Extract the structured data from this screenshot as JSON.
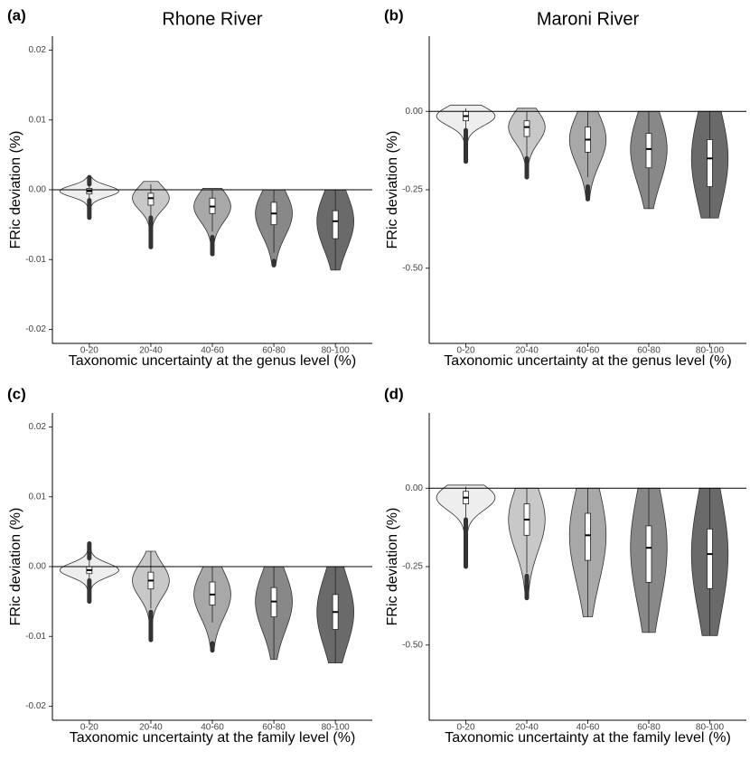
{
  "chart_data": [
    {
      "type": "violin",
      "panel_label": "(a)",
      "title": "Rhone River",
      "ylabel": "FRic deviation (%)",
      "xlabel": "Taxonomic uncertainty at the genus level (%)",
      "categories": [
        "0-20",
        "20-40",
        "40-60",
        "60-80",
        "80-100"
      ],
      "ylim": [
        -0.022,
        0.022
      ],
      "yticks": [
        -0.02,
        -0.01,
        {
          "value": 0,
          "label": "0.00"
        },
        0.01,
        0.02
      ],
      "hline": 0,
      "violins": [
        {
          "color": "#eeeeee",
          "range": [
            -0.004,
            0.0018
          ],
          "box": [
            -0.0015,
            -0.0006,
            -0.0002,
            0.0002,
            0.0008
          ],
          "outliers": [
            [
              -0.004,
              -0.0015
            ],
            [
              0.0008,
              0.0018
            ]
          ]
        },
        {
          "color": "#c8c8c8",
          "range": [
            -0.0082,
            0.0012
          ],
          "box": [
            -0.004,
            -0.0022,
            -0.0012,
            -0.0005,
            0.0008
          ],
          "outliers": [
            [
              -0.0082,
              -0.004
            ]
          ]
        },
        {
          "color": "#a8a8a8",
          "range": [
            -0.0092,
            0.0002
          ],
          "box": [
            -0.006,
            -0.0034,
            -0.0024,
            -0.0012,
            0
          ],
          "outliers": [
            [
              -0.0092,
              -0.0068
            ]
          ]
        },
        {
          "color": "#888888",
          "range": [
            -0.0108,
            0
          ],
          "box": [
            -0.009,
            -0.005,
            -0.0034,
            -0.0018,
            0
          ],
          "outliers": [
            [
              -0.0108,
              -0.0102
            ]
          ]
        },
        {
          "color": "#6a6a6a",
          "range": [
            -0.0115,
            0
          ],
          "box": [
            -0.0115,
            -0.007,
            -0.0045,
            -0.003,
            0
          ],
          "outliers": []
        }
      ]
    },
    {
      "type": "violin",
      "panel_label": "(b)",
      "title": "Maroni River",
      "ylabel": "FRic deviation (%)",
      "xlabel": "Taxonomic uncertainty at the genus level (%)",
      "categories": [
        "0-20",
        "20-40",
        "40-60",
        "60-80",
        "80-100"
      ],
      "ylim": [
        -0.74,
        0.24
      ],
      "yticks": [
        {
          "value": -0.5,
          "label": "-0.50"
        },
        -0.25,
        {
          "value": 0,
          "label": "0.00"
        }
      ],
      "hline": 0,
      "violins": [
        {
          "color": "#eeeeee",
          "range": [
            -0.16,
            0.02
          ],
          "box": [
            -0.06,
            -0.03,
            -0.015,
            0,
            0.01
          ],
          "outliers": [
            [
              -0.16,
              -0.06
            ]
          ]
        },
        {
          "color": "#c8c8c8",
          "range": [
            -0.21,
            0.01
          ],
          "box": [
            -0.15,
            -0.08,
            -0.05,
            -0.03,
            0
          ],
          "outliers": [
            [
              -0.21,
              -0.15
            ]
          ]
        },
        {
          "color": "#a8a8a8",
          "range": [
            -0.28,
            0
          ],
          "box": [
            -0.21,
            -0.13,
            -0.09,
            -0.05,
            0
          ],
          "outliers": [
            [
              -0.28,
              -0.24
            ]
          ]
        },
        {
          "color": "#888888",
          "range": [
            -0.31,
            0
          ],
          "box": [
            -0.31,
            -0.18,
            -0.12,
            -0.07,
            0
          ],
          "outliers": []
        },
        {
          "color": "#6a6a6a",
          "range": [
            -0.34,
            0
          ],
          "box": [
            -0.34,
            -0.24,
            -0.15,
            -0.09,
            0
          ],
          "outliers": []
        }
      ]
    },
    {
      "type": "violin",
      "panel_label": "(c)",
      "ylabel": "FRic deviation (%)",
      "xlabel": "Taxonomic uncertainty at the family level (%)",
      "categories": [
        "0-20",
        "20-40",
        "40-60",
        "60-80",
        "80-100"
      ],
      "ylim": [
        -0.022,
        0.022
      ],
      "yticks": [
        -0.02,
        -0.01,
        {
          "value": 0,
          "label": "0.00"
        },
        0.01,
        0.02
      ],
      "hline": 0,
      "violins": [
        {
          "color": "#eeeeee",
          "range": [
            -0.005,
            0.0033
          ],
          "box": [
            -0.002,
            -0.001,
            -0.0005,
            0,
            0.0012
          ],
          "outliers": [
            [
              -0.005,
              -0.002
            ],
            [
              0.0012,
              0.0033
            ]
          ]
        },
        {
          "color": "#c8c8c8",
          "range": [
            -0.0105,
            0.0022
          ],
          "box": [
            -0.006,
            -0.0032,
            -0.002,
            -0.0008,
            0.0022
          ],
          "outliers": [
            [
              -0.0105,
              -0.0065
            ]
          ]
        },
        {
          "color": "#a8a8a8",
          "range": [
            -0.012,
            0
          ],
          "box": [
            -0.008,
            -0.0055,
            -0.004,
            -0.0022,
            0
          ],
          "outliers": [
            [
              -0.012,
              -0.011
            ]
          ]
        },
        {
          "color": "#888888",
          "range": [
            -0.0133,
            0
          ],
          "box": [
            -0.0133,
            -0.0072,
            -0.005,
            -0.003,
            0
          ],
          "outliers": []
        },
        {
          "color": "#6a6a6a",
          "range": [
            -0.0138,
            0
          ],
          "box": [
            -0.0138,
            -0.009,
            -0.0065,
            -0.004,
            0
          ],
          "outliers": []
        }
      ]
    },
    {
      "type": "violin",
      "panel_label": "(d)",
      "ylabel": "FRic deviation (%)",
      "xlabel": "Taxonomic uncertainty at the family level (%)",
      "categories": [
        "0-20",
        "20-40",
        "40-60",
        "60-80",
        "80-100"
      ],
      "ylim": [
        -0.74,
        0.24
      ],
      "yticks": [
        {
          "value": -0.5,
          "label": "-0.50"
        },
        -0.25,
        {
          "value": 0,
          "label": "0.00"
        }
      ],
      "hline": 0,
      "violins": [
        {
          "color": "#eeeeee",
          "range": [
            -0.25,
            0.01
          ],
          "box": [
            -0.1,
            -0.05,
            -0.03,
            -0.01,
            0.005
          ],
          "outliers": [
            [
              -0.25,
              -0.1
            ]
          ]
        },
        {
          "color": "#c8c8c8",
          "range": [
            -0.35,
            0
          ],
          "box": [
            -0.27,
            -0.15,
            -0.1,
            -0.05,
            0
          ],
          "outliers": [
            [
              -0.35,
              -0.28
            ]
          ]
        },
        {
          "color": "#a8a8a8",
          "range": [
            -0.41,
            0
          ],
          "box": [
            -0.41,
            -0.23,
            -0.15,
            -0.08,
            0
          ],
          "outliers": []
        },
        {
          "color": "#888888",
          "range": [
            -0.46,
            0
          ],
          "box": [
            -0.46,
            -0.3,
            -0.19,
            -0.12,
            0
          ],
          "outliers": []
        },
        {
          "color": "#6a6a6a",
          "range": [
            -0.47,
            0
          ],
          "box": [
            -0.47,
            -0.32,
            -0.21,
            -0.13,
            0
          ],
          "outliers": []
        }
      ]
    }
  ]
}
